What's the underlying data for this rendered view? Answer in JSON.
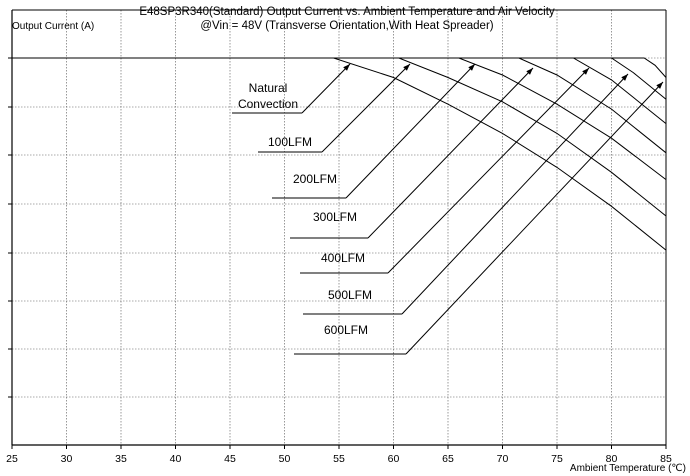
{
  "chart_data": {
    "type": "line",
    "title": "E48SP3R340(Standard)  Output Current vs. Ambient Temperature and Air Velocity",
    "subtitle": "@Vin = 48V (Transverse Orientation,With Heat Spreader)",
    "ylabel": "Output Current (A)",
    "xlabel": "Ambient Temperature (℃)",
    "xlim": [
      25,
      85
    ],
    "x_ticks": [
      "25",
      "30",
      "35",
      "40",
      "45",
      "50",
      "55",
      "60",
      "65",
      "70",
      "75",
      "80",
      "85"
    ],
    "grid": true,
    "series": [
      {
        "name": "Natural Convection",
        "x": [
          25,
          54.5,
          60,
          65,
          70,
          75,
          80,
          85
        ],
        "y": [
          8,
          8,
          7.6,
          7.05,
          6.45,
          5.75,
          4.95,
          4.05
        ]
      },
      {
        "name": "100LFM",
        "x": [
          25,
          60.5,
          65,
          70,
          75,
          80,
          85
        ],
        "y": [
          8,
          8,
          7.6,
          7.1,
          6.45,
          5.65,
          4.75
        ]
      },
      {
        "name": "200LFM",
        "x": [
          25,
          66,
          70,
          75,
          80,
          85
        ],
        "y": [
          8,
          8,
          7.65,
          7.05,
          6.35,
          5.5
        ]
      },
      {
        "name": "300LFM",
        "x": [
          25,
          71.5,
          75,
          80,
          85
        ],
        "y": [
          8,
          8,
          7.65,
          6.95,
          6.05
        ]
      },
      {
        "name": "400LFM",
        "x": [
          25,
          76.5,
          80,
          85
        ],
        "y": [
          8,
          8,
          7.55,
          6.65
        ]
      },
      {
        "name": "500LFM",
        "x": [
          25,
          80,
          82,
          85
        ],
        "y": [
          8,
          8,
          7.7,
          7.15
        ]
      },
      {
        "name": "600LFM",
        "x": [
          25,
          83,
          84,
          85
        ],
        "y": [
          8,
          8,
          7.85,
          7.6
        ]
      }
    ]
  }
}
